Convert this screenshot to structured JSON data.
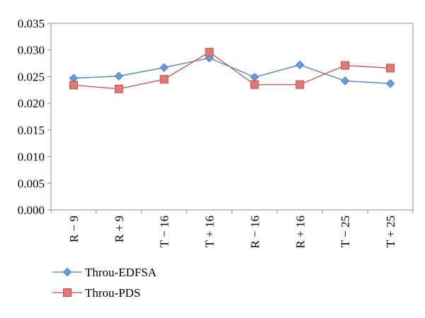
{
  "chart_data": {
    "type": "line",
    "categories": [
      "R − 9",
      "R + 9",
      "T − 16",
      "T + 16",
      "R − 16",
      "R + 16",
      "T − 25",
      "T + 25"
    ],
    "yticks": [
      "0.000",
      "0.005",
      "0.010",
      "0.015",
      "0.020",
      "0.025",
      "0.030",
      "0.035"
    ],
    "ylim": [
      0,
      0.035
    ],
    "grid": false,
    "legend_position": "bottom-left",
    "series": [
      {
        "name": "Throu-EDFSA",
        "color": "#4a7ebb",
        "marker": "diamond",
        "values": [
          0.0247,
          0.0251,
          0.0267,
          0.0285,
          0.0249,
          0.0272,
          0.0242,
          0.0237
        ]
      },
      {
        "name": "Throu-PDS",
        "color": "#c0504d",
        "marker": "square",
        "values": [
          0.0234,
          0.0227,
          0.0245,
          0.0296,
          0.0235,
          0.0235,
          0.0271,
          0.0266
        ]
      }
    ]
  }
}
